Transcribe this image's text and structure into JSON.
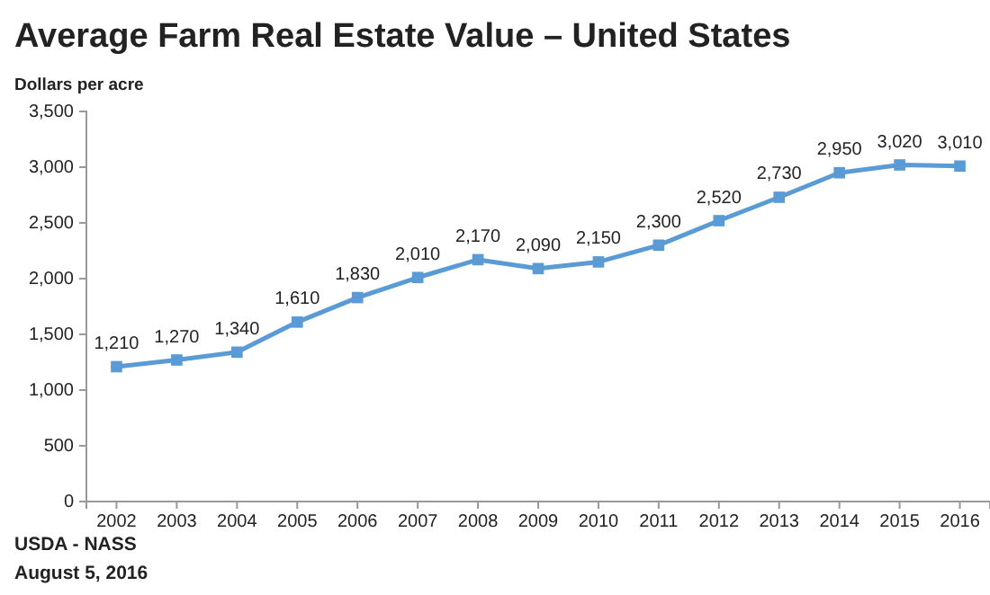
{
  "chart_data": {
    "type": "line",
    "title": "Average Farm Real Estate Value – United States",
    "ylabel": "Dollars per acre",
    "categories": [
      "2002",
      "2003",
      "2004",
      "2005",
      "2006",
      "2007",
      "2008",
      "2009",
      "2010",
      "2011",
      "2012",
      "2013",
      "2014",
      "2015",
      "2016"
    ],
    "values": [
      1210,
      1270,
      1340,
      1610,
      1830,
      2010,
      2170,
      2090,
      2150,
      2300,
      2520,
      2730,
      2950,
      3020,
      3010
    ],
    "value_labels": [
      "1,210",
      "1,270",
      "1,340",
      "1,610",
      "1,830",
      "2,010",
      "2,170",
      "2,090",
      "2,150",
      "2,300",
      "2,520",
      "2,730",
      "2,950",
      "3,020",
      "3,010"
    ],
    "color": "#5b9bd5",
    "marker": "square",
    "line_style": "solid",
    "grid": false,
    "ylim": [
      0,
      3500
    ],
    "yticks": [
      0,
      {
        "value": 500,
        "label": "500"
      },
      {
        "value": 1000,
        "label": "1,000"
      },
      {
        "value": 1500,
        "label": "1,500"
      },
      {
        "value": 2000,
        "label": "2,000"
      },
      {
        "value": 2500,
        "label": "2,500"
      },
      {
        "value": 3000,
        "label": "3,000"
      },
      {
        "value": 3500,
        "label": "3,500"
      }
    ],
    "annotations": [
      "USDA - NASS",
      "August 5, 2016"
    ]
  }
}
